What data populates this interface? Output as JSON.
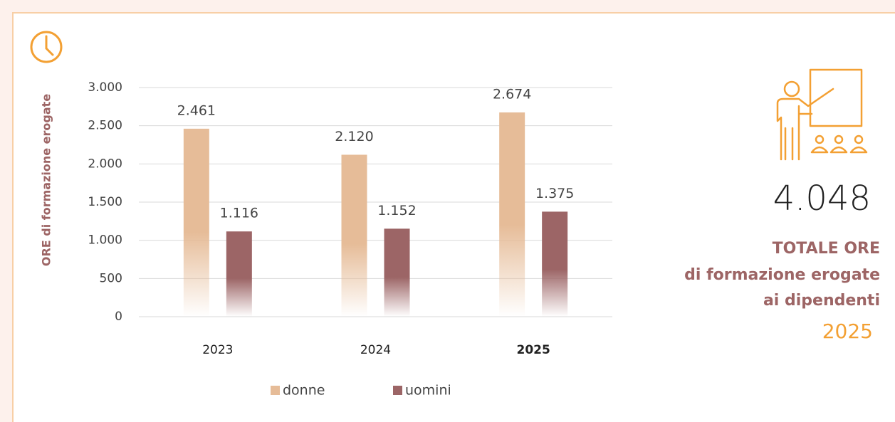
{
  "chart_data": {
    "type": "bar",
    "ylabel": "ORE di formazione erogate",
    "categories": [
      "2023",
      "2024",
      "2025"
    ],
    "series": [
      {
        "name": "donne",
        "color": "#e6bc98",
        "values": [
          2461,
          2120,
          2674
        ],
        "value_labels": [
          "2.461",
          "2.120",
          "2.674"
        ]
      },
      {
        "name": "uomini",
        "color": "#9c6566",
        "values": [
          1116,
          1152,
          1375
        ],
        "value_labels": [
          "1.116",
          "1.152",
          "1.375"
        ]
      }
    ],
    "ylim": [
      0,
      3000
    ],
    "yticks": [
      0,
      500,
      {
        "value": 1000,
        "label": "1.000"
      },
      {
        "value": 1500,
        "label": "1.500"
      },
      {
        "value": 2000,
        "label": "2.000"
      },
      {
        "value": 2500,
        "label": "2.500"
      },
      {
        "value": 3000,
        "label": "3.000"
      }
    ],
    "grid": true,
    "legend": "bottom"
  },
  "side_panel": {
    "total": "4.048",
    "line1": "TOTALE ORE",
    "line2": "di formazione erogate",
    "line3": "ai dipendenti",
    "year": "2025"
  }
}
